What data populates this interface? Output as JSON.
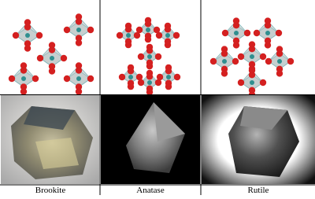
{
  "panels": [
    {
      "label": "Brookite"
    },
    {
      "label": "Anatase"
    },
    {
      "label": "Rutile"
    }
  ]
}
